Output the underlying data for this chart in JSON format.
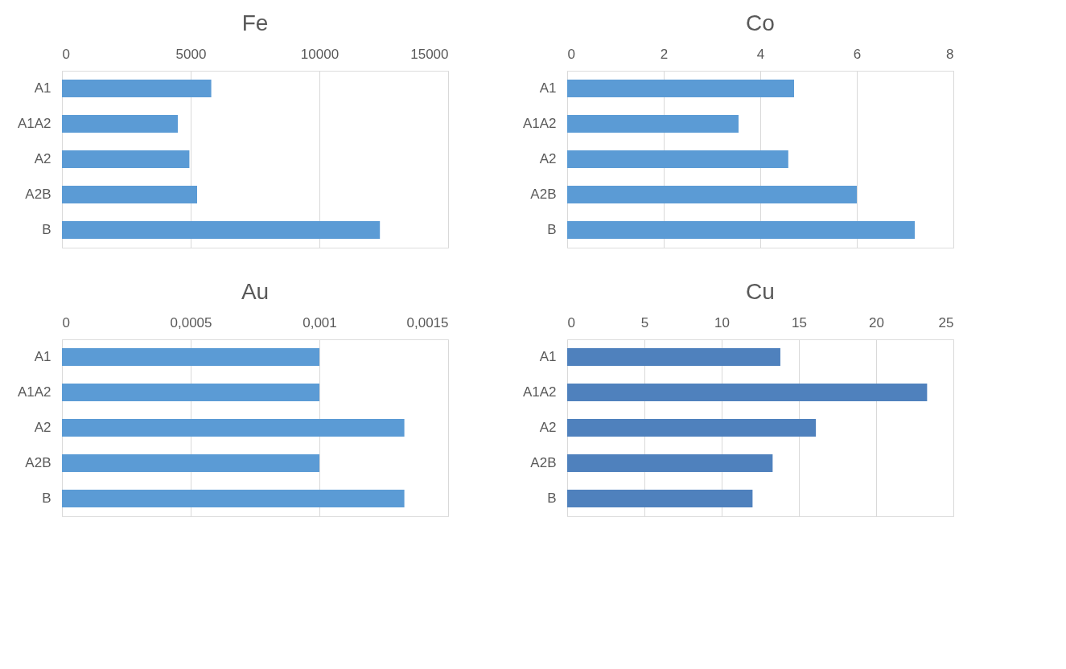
{
  "chart_data": [
    {
      "type": "bar",
      "orientation": "horizontal",
      "title": "Fe",
      "categories": [
        "A1",
        "A1A2",
        "A2",
        "A2B",
        "B"
      ],
      "values": [
        5800,
        4500,
        4950,
        5250,
        12350
      ],
      "color": "#5b9bd5",
      "xlim": [
        0,
        15000
      ],
      "xticks": [
        0,
        5000,
        10000,
        15000
      ],
      "grid": "x"
    },
    {
      "type": "bar",
      "orientation": "horizontal",
      "title": "Co",
      "categories": [
        "A1",
        "A1A2",
        "A2",
        "A2B",
        "B"
      ],
      "values": [
        4.7,
        3.55,
        4.58,
        6.0,
        7.2
      ],
      "color": "#5b9bd5",
      "xlim": [
        0,
        8
      ],
      "xticks": [
        0,
        2,
        4,
        6,
        8
      ],
      "grid": "x"
    },
    {
      "type": "bar",
      "orientation": "horizontal",
      "title": "Au",
      "categories": [
        "A1",
        "A1A2",
        "A2",
        "A2B",
        "B"
      ],
      "values": [
        0.001,
        0.001,
        0.00133,
        0.001,
        0.00133
      ],
      "color": "#5b9bd5",
      "xlim": [
        0,
        0.0015
      ],
      "xticks": [
        0,
        {
          "value": 0.0005,
          "label": "0,0005"
        },
        {
          "value": 0.001,
          "label": "0,001"
        },
        {
          "value": 0.0015,
          "label": "0,0015"
        }
      ],
      "grid": "x"
    },
    {
      "type": "bar",
      "orientation": "horizontal",
      "title": "Cu",
      "categories": [
        "A1",
        "A1A2",
        "A2",
        "A2B",
        "B"
      ],
      "values": [
        13.8,
        23.3,
        16.1,
        13.3,
        12.0
      ],
      "color": "#4f81bd",
      "xlim": [
        0,
        25
      ],
      "xticks": [
        0,
        5,
        10,
        15,
        20,
        25
      ],
      "grid": "x"
    }
  ]
}
